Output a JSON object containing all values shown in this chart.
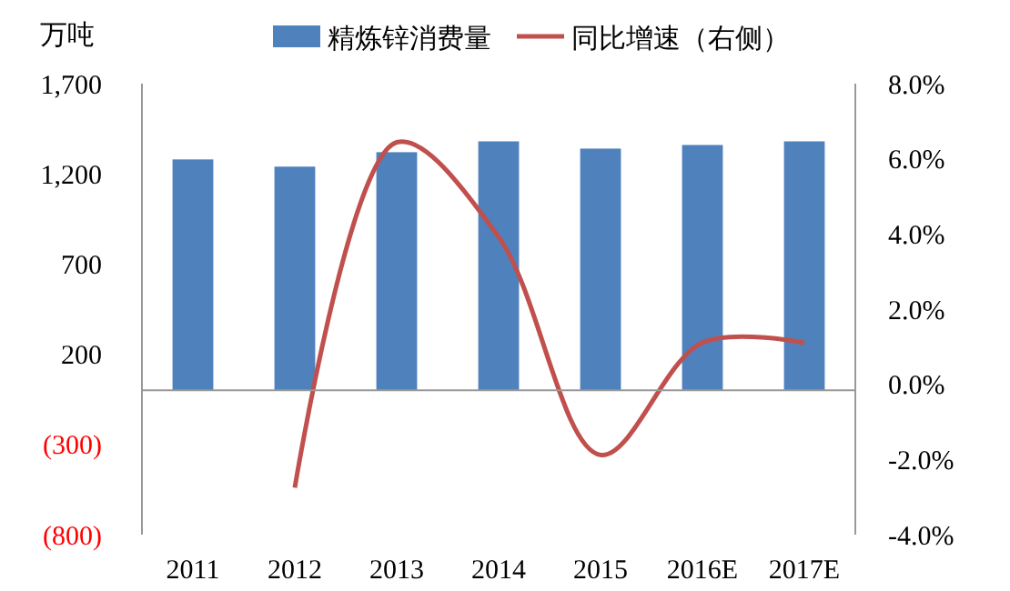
{
  "chart_data": {
    "type": "bar",
    "ylabel": "万吨",
    "categories": [
      "2011",
      "2012",
      "2013",
      "2014",
      "2015",
      "2016E",
      "2017E"
    ],
    "series": [
      {
        "name": "精炼锌消费量",
        "color": "#4f81bd",
        "values": [
          1280,
          1240,
          1320,
          1380,
          1340,
          1360,
          1380
        ]
      },
      {
        "name": "同比增速（右侧）",
        "type": "line",
        "axis": "y2",
        "color": "#c0504d",
        "values": [
          null,
          -2.75,
          6.44,
          3.92,
          -1.88,
          1.11,
          1.1
        ]
      }
    ],
    "ylim": [
      -800,
      1700
    ],
    "yticks": [
      {
        "value": 1700,
        "label": "1,700"
      },
      {
        "value": 1200,
        "label": "1,200"
      },
      700,
      200,
      {
        "value": -300,
        "label": "(300)"
      },
      {
        "value": -800,
        "label": "(800)"
      }
    ],
    "y2lim": [
      -4,
      8
    ],
    "y2ticks": [
      {
        "value": 8,
        "label": "8.0%"
      },
      {
        "value": 6,
        "label": "6.0%"
      },
      {
        "value": 4,
        "label": "4.0%"
      },
      {
        "value": 2,
        "label": "2.0%"
      },
      {
        "value": 0,
        "label": "0.0%"
      },
      {
        "value": -2,
        "label": "-2.0%"
      },
      {
        "value": -4,
        "label": "-4.0%"
      }
    ],
    "legend": "top",
    "grid": false
  }
}
